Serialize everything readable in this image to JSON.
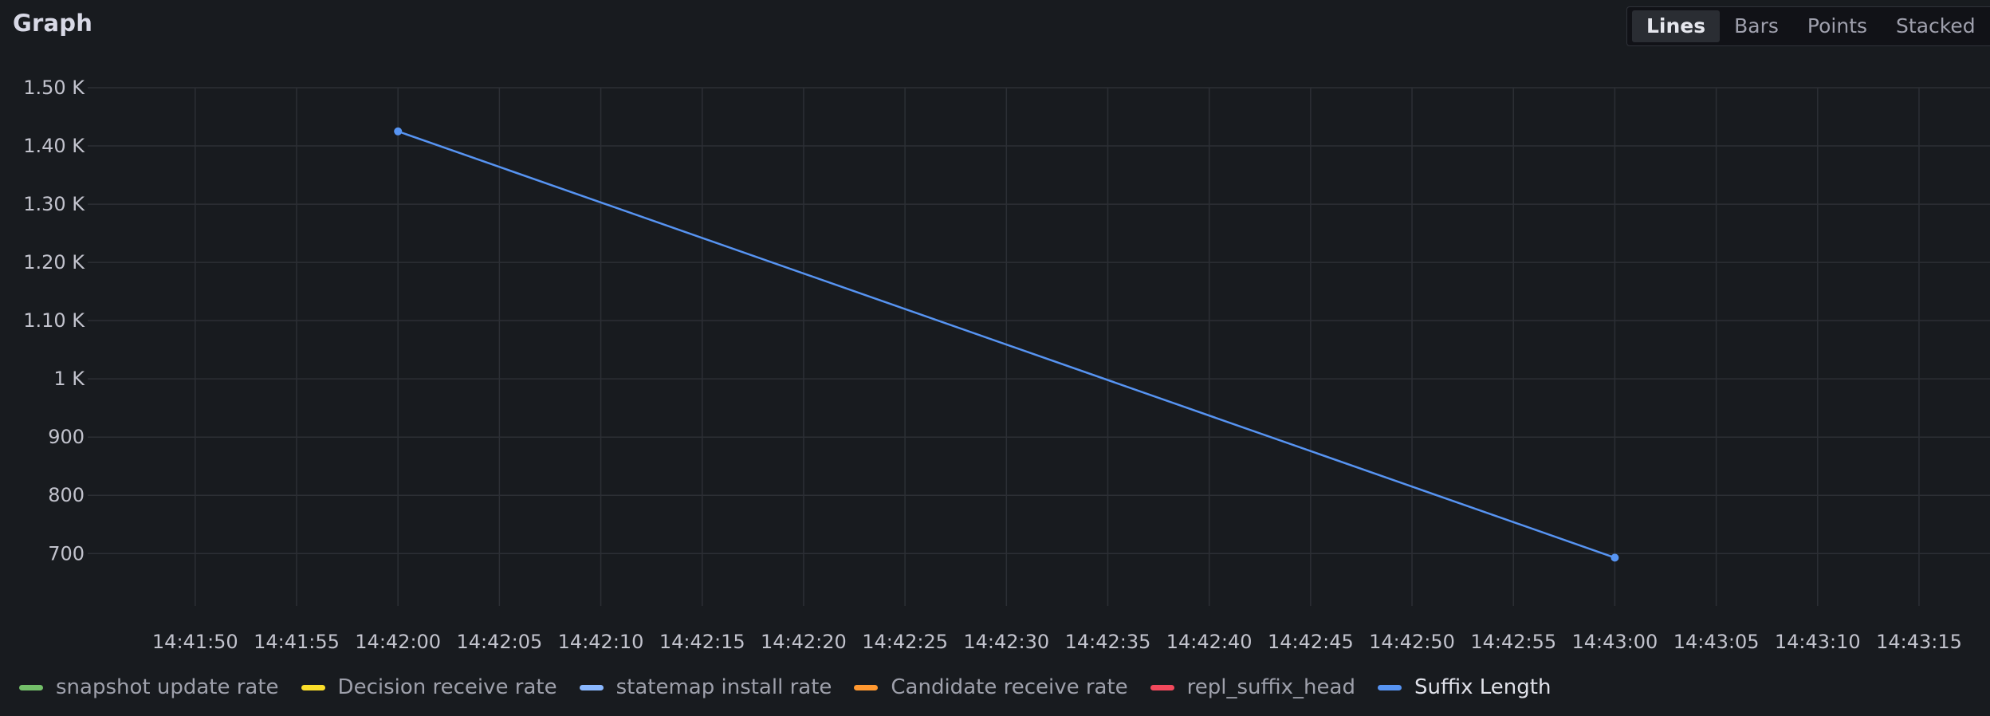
{
  "panel": {
    "title": "Graph"
  },
  "mode_switch": [
    {
      "label": "Lines",
      "active": true
    },
    {
      "label": "Bars",
      "active": false
    },
    {
      "label": "Points",
      "active": false
    },
    {
      "label": "Stacked",
      "active": false
    }
  ],
  "chart_data": {
    "type": "line",
    "title": "",
    "xlabel": "",
    "ylabel": "",
    "y_ticks": [
      "1.50 K",
      "1.40 K",
      "1.30 K",
      "1.20 K",
      "1.10 K",
      "1 K",
      "900",
      "800",
      "700"
    ],
    "y_tick_values": [
      1500,
      1400,
      1300,
      1200,
      1100,
      1000,
      900,
      800,
      700
    ],
    "ylim": [
      610,
      1500
    ],
    "x_ticks": [
      "14:41:50",
      "14:41:55",
      "14:42:00",
      "14:42:05",
      "14:42:10",
      "14:42:15",
      "14:42:20",
      "14:42:25",
      "14:42:30",
      "14:42:35",
      "14:42:40",
      "14:42:45",
      "14:42:50",
      "14:42:55",
      "14:43:00",
      "14:43:05",
      "14:43:10",
      "14:43:15"
    ],
    "xlim": [
      "14:41:44.7",
      "14:43:18.5"
    ],
    "grid": true,
    "legend_placement": "bottom-left",
    "series": [
      {
        "name": "snapshot update rate",
        "color": "#73bf69",
        "points": []
      },
      {
        "name": "Decision receive rate",
        "color": "#fade2a",
        "points": []
      },
      {
        "name": "statemap install rate",
        "color": "#8ab8ff",
        "points": []
      },
      {
        "name": "Candidate receive rate",
        "color": "#ff9830",
        "points": []
      },
      {
        "name": "repl_suffix_head",
        "color": "#f2495c",
        "points": []
      },
      {
        "name": "Suffix Length",
        "color": "#5794f2",
        "points": [
          {
            "x": "14:42:00",
            "y": 1425
          },
          {
            "x": "14:43:00",
            "y": 693
          }
        ]
      }
    ]
  },
  "colors": {
    "background": "#181b1f",
    "grid": "#2c2f35",
    "active_series": "#5794f2"
  }
}
